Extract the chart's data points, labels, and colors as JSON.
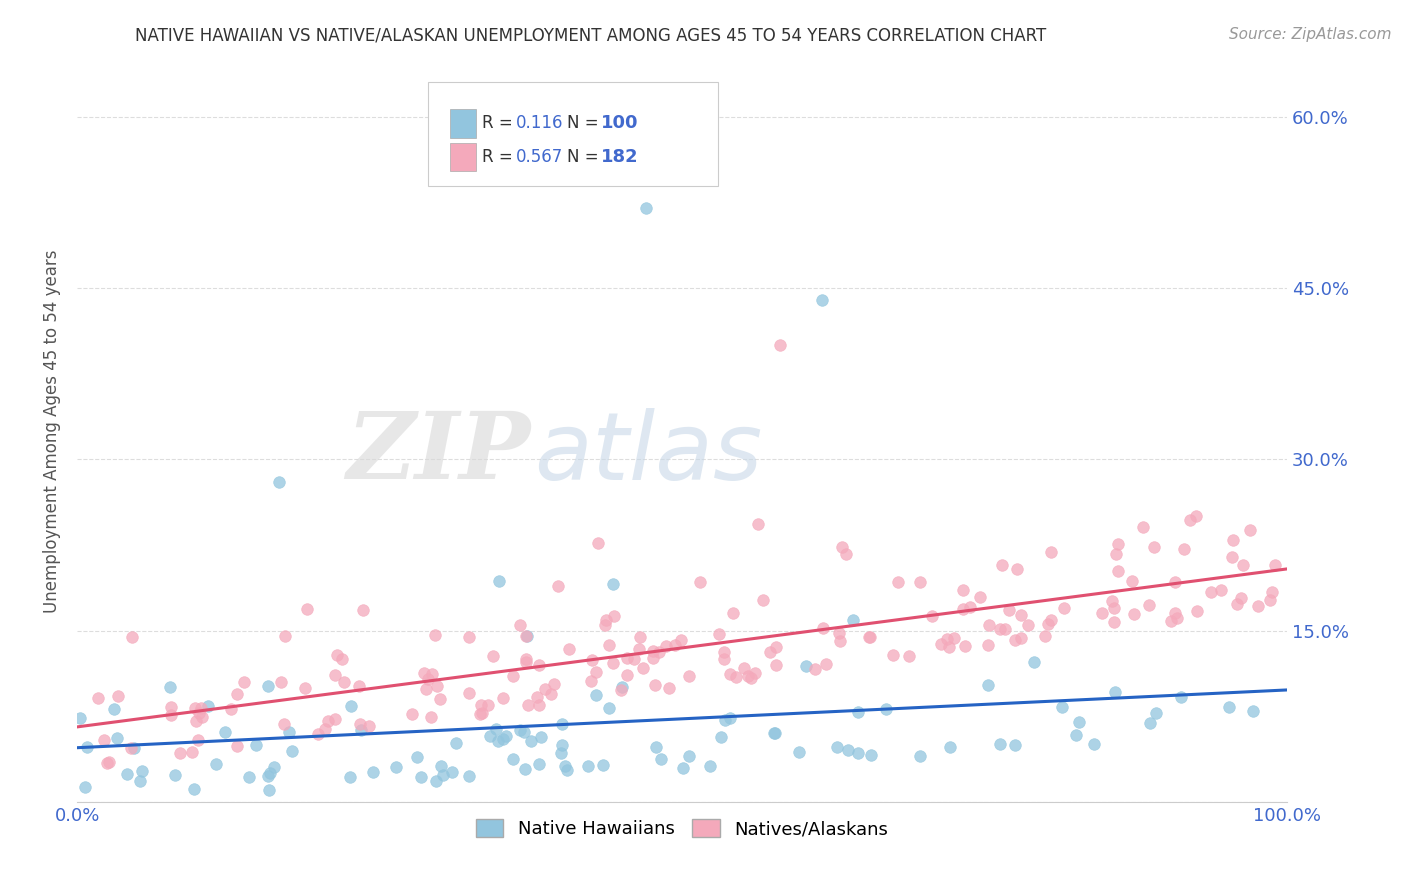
{
  "title": "NATIVE HAWAIIAN VS NATIVE/ALASKAN UNEMPLOYMENT AMONG AGES 45 TO 54 YEARS CORRELATION CHART",
  "source": "Source: ZipAtlas.com",
  "ylabel": "Unemployment Among Ages 45 to 54 years",
  "xlim": [
    0.0,
    1.0
  ],
  "ylim": [
    0.0,
    0.65
  ],
  "ytick_vals": [
    0.0,
    0.15,
    0.3,
    0.45,
    0.6
  ],
  "ytick_labels": [
    "",
    "15.0%",
    "30.0%",
    "45.0%",
    "60.0%"
  ],
  "ytick_labels_right": [
    "",
    "15.0%",
    "30.0%",
    "45.0%",
    "60.0%"
  ],
  "xtick_vals": [
    0.0,
    1.0
  ],
  "xtick_labels": [
    "0.0%",
    "100.0%"
  ],
  "legend_labels": [
    "Native Hawaiians",
    "Natives/Alaskans"
  ],
  "hawaii_color": "#92C5DE",
  "alaska_color": "#F4A9BB",
  "hawaii_line_color": "#2563C4",
  "alaska_line_color": "#E05070",
  "hawaii_R": 0.116,
  "hawaii_N": 100,
  "alaska_R": 0.567,
  "alaska_N": 182,
  "background_color": "#FFFFFF",
  "grid_color": "#DDDDDD",
  "title_color": "#333333",
  "axis_label_color": "#555555",
  "tick_color": "#4169CD",
  "watermark_zip": "ZIP",
  "watermark_atlas": "atlas",
  "legend_text_color": "#333333"
}
